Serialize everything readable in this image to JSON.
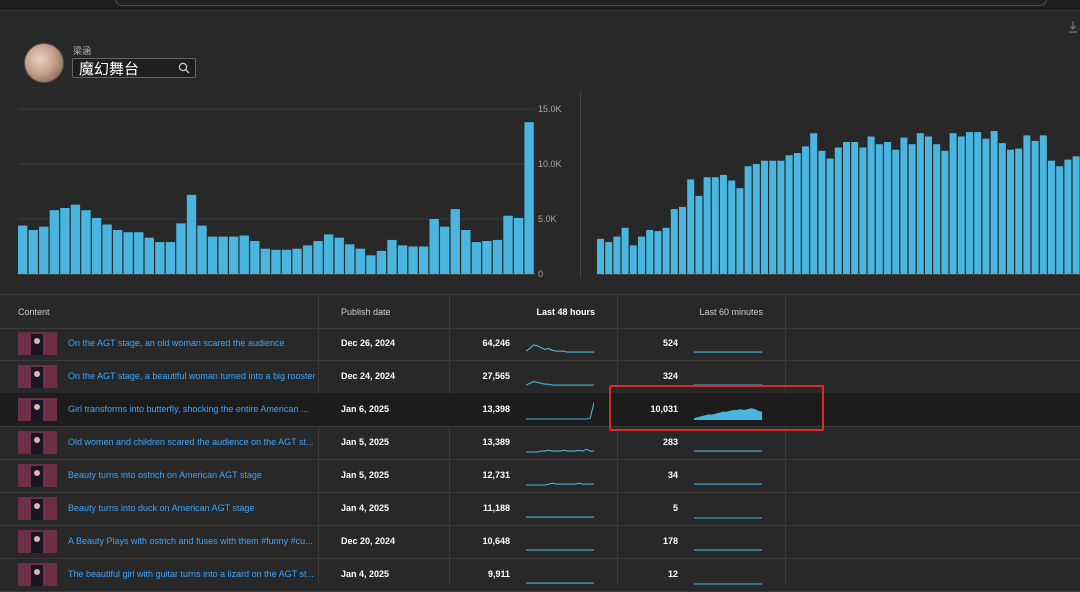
{
  "channel": {
    "name": "梁涵",
    "search_value": "魔幻舞台",
    "avatar_icon": "avatar-image",
    "search_icon": "search-icon",
    "download_icon": "download-icon"
  },
  "charts": {
    "accent_color": "#4ab6e0",
    "left_ticks": [
      "15.0K",
      "10.0K",
      "5.0K",
      "0"
    ]
  },
  "chart_data": [
    {
      "type": "bar",
      "title": "",
      "ylim": [
        0,
        15000
      ],
      "ticks": [
        "15.0K",
        "10.0K",
        "5.0K",
        "0"
      ],
      "values": [
        4400,
        4000,
        4300,
        5800,
        6000,
        6300,
        5800,
        5100,
        4500,
        4000,
        3800,
        3800,
        3300,
        2900,
        2900,
        4600,
        7200,
        4400,
        3400,
        3400,
        3400,
        3500,
        3000,
        2300,
        2200,
        2200,
        2300,
        2600,
        3000,
        3600,
        3300,
        2700,
        2300,
        1700,
        2100,
        3100,
        2600,
        2500,
        2500,
        5000,
        4300,
        5900,
        4000,
        2900,
        3000,
        3100,
        5300,
        5100,
        13800
      ]
    },
    {
      "type": "bar",
      "title": "",
      "ylim": [
        0,
        15000
      ],
      "values": [
        3200,
        2900,
        3400,
        4200,
        2600,
        3400,
        4000,
        3900,
        4200,
        5900,
        6100,
        8600,
        7100,
        8800,
        8800,
        9000,
        8500,
        7800,
        9800,
        10000,
        10300,
        10300,
        10300,
        10800,
        11000,
        11600,
        12800,
        11200,
        10500,
        11500,
        12000,
        12000,
        11500,
        12500,
        11800,
        12000,
        11300,
        12400,
        11800,
        12800,
        12500,
        11800,
        11200,
        12800,
        12500,
        12900,
        12900,
        12300,
        13000,
        11900,
        11300,
        11400,
        12600,
        12100,
        12600,
        10300,
        9800,
        10400,
        10700,
        9700
      ]
    }
  ],
  "table": {
    "headers": {
      "content": "Content",
      "publish": "Publish date",
      "last48": "Last 48 hours",
      "last60": "Last 60 minutes"
    },
    "rows": [
      {
        "title": "On the AGT stage, an old woman scared the audience",
        "date": "Dec 26, 2024",
        "last48": "64,246",
        "last60": "524",
        "spark48": [
          2,
          5,
          9,
          8,
          6,
          4,
          5,
          3,
          2,
          2,
          2,
          1,
          1,
          1,
          1,
          1,
          1,
          1,
          1
        ],
        "spark60": [
          1,
          1,
          1,
          1,
          1,
          1,
          1,
          1,
          1,
          1,
          1,
          1,
          1,
          1,
          1,
          1,
          1,
          1,
          1
        ]
      },
      {
        "title": "On the AGT stage, a beautiful woman turned into a big rooster",
        "date": "Dec 24, 2024",
        "last48": "27,565",
        "last60": "324",
        "spark48": [
          1,
          3,
          5,
          4,
          3,
          2,
          2,
          1,
          1,
          1,
          1,
          1,
          1,
          1,
          1,
          1,
          1,
          1,
          1
        ],
        "spark60": [
          1,
          1,
          1,
          1,
          1,
          1,
          1,
          1,
          1,
          1,
          1,
          1,
          1,
          1,
          1,
          1,
          1,
          1,
          1
        ]
      },
      {
        "title": "Girl transforms into butterfly, shocking the entire American ...",
        "date": "Jan 6, 2025",
        "last48": "13,398",
        "last60": "10,031",
        "spark48": [
          0,
          0,
          0,
          0,
          0,
          0,
          0,
          0,
          0,
          0,
          0,
          0,
          0,
          0,
          0,
          0,
          0,
          1,
          18
        ],
        "spark60": [
          1,
          2,
          3,
          4,
          5,
          5,
          6,
          7,
          8,
          8,
          9,
          10,
          10,
          11,
          10,
          11,
          12,
          11,
          9,
          8
        ]
      },
      {
        "title": "Old women and children scared the audience on the AGT st...",
        "date": "Jan 5, 2025",
        "last48": "13,389",
        "last60": "283",
        "spark48": [
          0,
          0,
          0,
          0,
          1,
          1,
          2,
          1,
          1,
          1,
          2,
          1,
          1,
          1,
          2,
          1,
          3,
          1,
          1
        ],
        "spark60": [
          1,
          1,
          1,
          1,
          1,
          1,
          1,
          1,
          1,
          1,
          1,
          1,
          1,
          1,
          1,
          1,
          1,
          1,
          1
        ]
      },
      {
        "title": "Beauty turns into ostrich on American AGT stage",
        "date": "Jan 5, 2025",
        "last48": "12,731",
        "last60": "34",
        "spark48": [
          0,
          0,
          0,
          0,
          0,
          0,
          1,
          2,
          1,
          1,
          1,
          1,
          1,
          1,
          2,
          1,
          1,
          1,
          1
        ],
        "spark60": [
          1,
          1,
          1,
          1,
          1,
          1,
          1,
          1,
          1,
          1,
          1,
          1,
          1,
          1,
          1,
          1,
          1,
          1,
          1
        ]
      },
      {
        "title": "Beauty turns into duck on American AGT stage",
        "date": "Jan 4, 2025",
        "last48": "11,188",
        "last60": "5",
        "spark48": [
          1,
          1,
          1,
          1,
          1,
          1,
          1,
          1,
          1,
          1,
          1,
          1,
          1,
          1,
          1,
          1,
          1,
          1,
          1
        ],
        "spark60": [
          0,
          0,
          0,
          0,
          0,
          0,
          0,
          0,
          0,
          0,
          0,
          0,
          0,
          0,
          0,
          0,
          0,
          0,
          0
        ]
      },
      {
        "title": "A Beauty Plays with ostrich and fuses with them #funny #cu...",
        "date": "Dec 20, 2024",
        "last48": "10,648",
        "last60": "178",
        "spark48": [
          1,
          1,
          1,
          1,
          1,
          1,
          1,
          1,
          1,
          1,
          1,
          1,
          1,
          1,
          1,
          1,
          1,
          1,
          1
        ],
        "spark60": [
          1,
          1,
          1,
          1,
          1,
          1,
          1,
          1,
          1,
          1,
          1,
          1,
          1,
          1,
          1,
          1,
          1,
          1,
          1
        ]
      },
      {
        "title": "The beautiful girl with guitar turns into a lizard on the AGT st...",
        "date": "Jan 4, 2025",
        "last48": "9,911",
        "last60": "12",
        "spark48": [
          1,
          1,
          1,
          1,
          1,
          1,
          1,
          1,
          1,
          1,
          1,
          1,
          1,
          1,
          1,
          1,
          1,
          1,
          1
        ],
        "spark60": [
          0,
          0,
          0,
          0,
          0,
          0,
          0,
          0,
          0,
          0,
          0,
          0,
          0,
          0,
          0,
          0,
          0,
          0,
          0
        ]
      }
    ]
  }
}
